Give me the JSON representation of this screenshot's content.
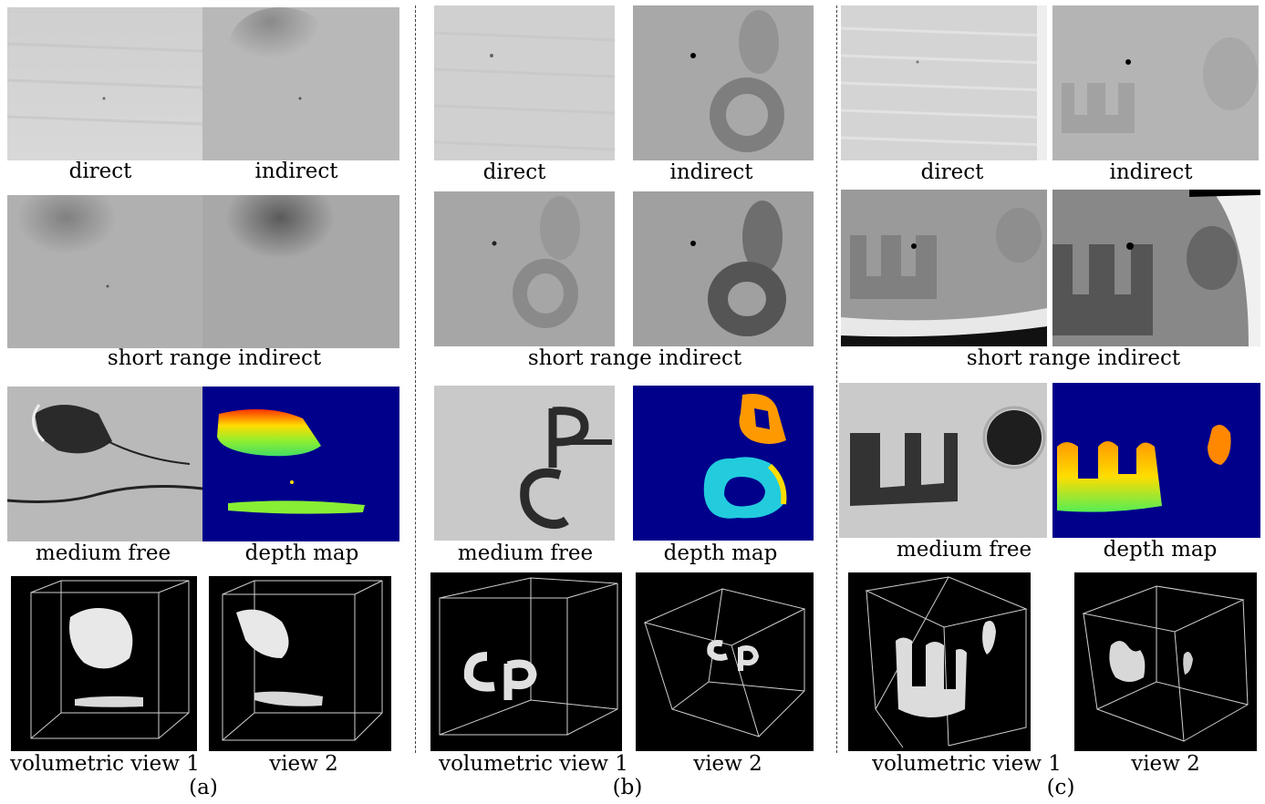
{
  "columns": [
    {
      "panel_label": "(a)",
      "row1_labels": [
        "direct",
        "indirect"
      ],
      "row2_label": "short range indirect",
      "row3_labels": [
        "medium free",
        "depth map"
      ],
      "row4_labels": [
        "volumetric view 1",
        "view 2"
      ]
    },
    {
      "panel_label": "(b)",
      "row1_labels": [
        "direct",
        "indirect"
      ],
      "row2_label": "short range indirect",
      "row3_labels": [
        "medium free",
        "depth map"
      ],
      "row4_labels": [
        "volumetric view 1",
        "view 2"
      ]
    },
    {
      "panel_label": "(c)",
      "row1_labels": [
        "direct",
        "indirect"
      ],
      "row2_label": "short range indirect",
      "row3_labels": [
        "medium free",
        "depth map"
      ],
      "row4_labels": [
        "volumetric view 1",
        "view 2"
      ]
    }
  ],
  "colors": {
    "depth_background": "#00008b",
    "volume_background": "#000000"
  }
}
